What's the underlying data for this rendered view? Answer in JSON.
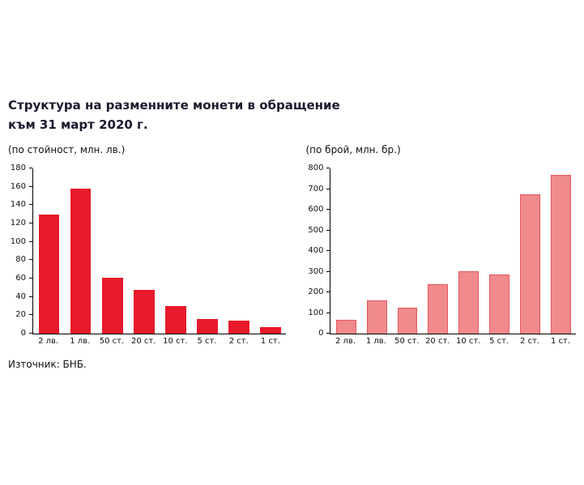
{
  "title_line1": "Структура на разменните монети в обращение",
  "title_line2": "към 31 март 2020 г.",
  "source": "Източник: БНБ.",
  "chart_data": [
    {
      "type": "bar",
      "title": "(по стойност, млн. лв.)",
      "categories": [
        "2 лв.",
        "1 лв.",
        "50 ст.",
        "20 ст.",
        "10 ст.",
        "5 ст.",
        "2 ст.",
        "1 ст."
      ],
      "values": [
        130,
        158,
        61,
        48,
        30,
        16,
        14,
        7
      ],
      "ylim": [
        0,
        180
      ],
      "ytick_step": 20,
      "bar_color": "#e8192c",
      "bar_border": "",
      "grid": false,
      "legend": "none",
      "xlabel": "",
      "ylabel": ""
    },
    {
      "type": "bar",
      "title": "(по брой, млн. бр.)",
      "categories": [
        "2 лв.",
        "1 лв.",
        "50 ст.",
        "20 ст.",
        "10 ст.",
        "5 ст.",
        "2 ст.",
        "1 ст."
      ],
      "values": [
        65,
        160,
        125,
        240,
        300,
        288,
        675,
        770
      ],
      "ylim": [
        0,
        800
      ],
      "ytick_step": 100,
      "bar_color": "#f08a8c",
      "bar_border": "#e4575b",
      "grid": false,
      "legend": "none",
      "xlabel": "",
      "ylabel": ""
    }
  ]
}
